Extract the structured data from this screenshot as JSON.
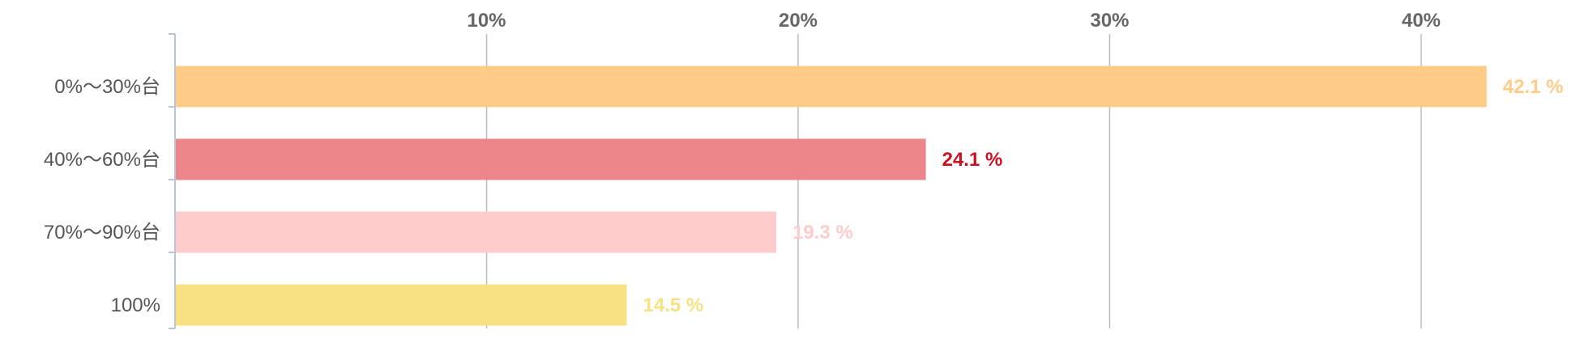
{
  "chart_data": {
    "type": "bar",
    "orientation": "horizontal",
    "title": "",
    "xlabel": "",
    "ylabel": "",
    "xlim": [
      0,
      42.1
    ],
    "x_ticks": [
      10,
      20,
      30,
      40
    ],
    "x_tick_labels": [
      "10%",
      "20%",
      "30%",
      "40%"
    ],
    "x_axis_position": "top",
    "grid": true,
    "legend": "none",
    "categories": [
      "0%〜30%台",
      "40%〜60%台",
      "70%〜90%台",
      "100%"
    ],
    "values": [
      42.1,
      24.1,
      19.3,
      14.5
    ],
    "value_labels": [
      "42.1 %",
      "24.1 %",
      "19.3 %",
      "14.5 %"
    ],
    "bar_colors": [
      "#FFCC88",
      "#EC868B",
      "#FFCCCC",
      "#F7E183"
    ],
    "label_colors": [
      "#FFCC88",
      "#CC1122",
      "#FFCCCC",
      "#F7E183"
    ],
    "axis_color": "#B8C4D8",
    "grid_color": "#BBBBBB",
    "tick_label_color": "#666666",
    "category_label_color": "#555555"
  }
}
